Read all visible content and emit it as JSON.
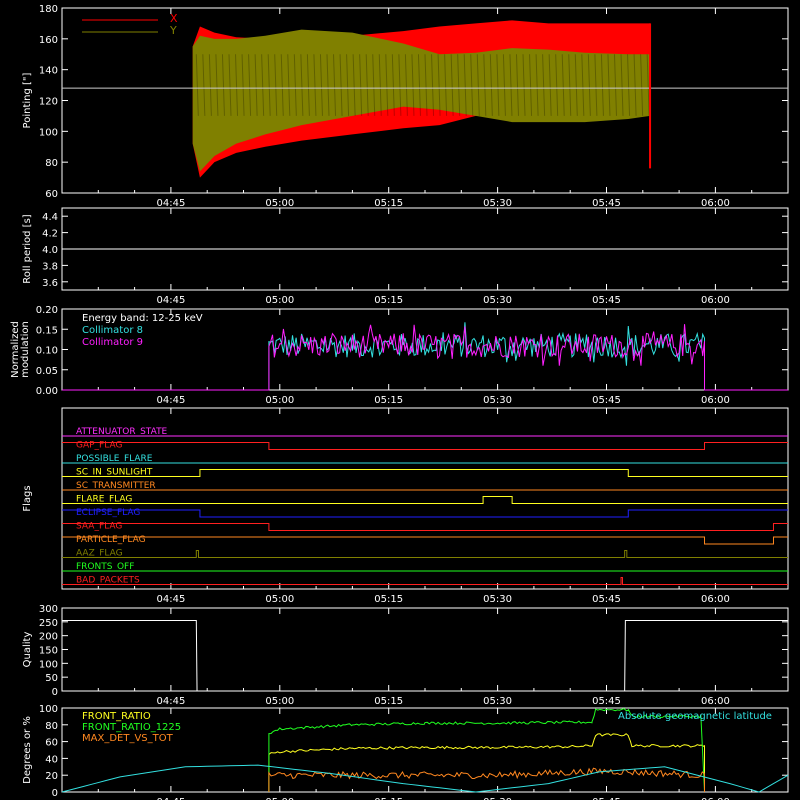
{
  "colors": {
    "background": "#000000",
    "axes": "#ffffff",
    "x_pointing": "#ff0000",
    "y_pointing": "#808000",
    "collimator8": "#33e0e0",
    "collimator9": "#ff20ff",
    "front_ratio": "#ffff20",
    "front_ratio_1225": "#20ff20",
    "max_det": "#ff8820",
    "geomag": "#33e0e0",
    "quality": "#ffffff",
    "roll": "#ffffff"
  },
  "time_axis": {
    "start": "04:30",
    "end": "06:10",
    "ticks": [
      "04:45",
      "05:00",
      "05:15",
      "05:30",
      "05:45",
      "06:00"
    ],
    "tick_minutes": [
      15,
      30,
      45,
      60,
      75,
      90
    ]
  },
  "chart_data": [
    {
      "id": "pointing",
      "type": "area",
      "ylabel": "Pointing [\"]",
      "ylim": [
        60,
        180
      ],
      "yticks": [
        "60",
        "80",
        "100",
        "120",
        "140",
        "160",
        "180"
      ],
      "ytick_values": [
        60,
        80,
        100,
        120,
        140,
        160,
        180
      ],
      "reference_line": 128,
      "legend": [
        "X",
        "Y"
      ],
      "series": [
        {
          "name": "X",
          "x_minutes": [
            18,
            19,
            21,
            24,
            28,
            33,
            40,
            47,
            52,
            57,
            62,
            67,
            72,
            78,
            81
          ],
          "upper": [
            155,
            168,
            164,
            161,
            160,
            160,
            162,
            165,
            168,
            170,
            172,
            170,
            170,
            170,
            170
          ],
          "lower": [
            92,
            70,
            80,
            86,
            90,
            94,
            98,
            102,
            104,
            110,
            110,
            112,
            114,
            114,
            114
          ]
        },
        {
          "name": "Y",
          "x_minutes": [
            18,
            19,
            21,
            24,
            28,
            33,
            40,
            47,
            52,
            57,
            62,
            67,
            72,
            78,
            81
          ],
          "upper": [
            155,
            162,
            160,
            160,
            162,
            166,
            164,
            157,
            150,
            151,
            154,
            153,
            151,
            150,
            150
          ],
          "lower": [
            92,
            74,
            84,
            92,
            98,
            104,
            110,
            116,
            114,
            110,
            106,
            106,
            106,
            108,
            110
          ]
        }
      ]
    },
    {
      "id": "roll",
      "type": "line",
      "ylabel": "Roll period [s]",
      "ylim": [
        3.5,
        4.5
      ],
      "yticks": [
        "3.6",
        "3.8",
        "4.0",
        "4.2",
        "4.4"
      ],
      "ytick_values": [
        3.6,
        3.8,
        4.0,
        4.2,
        4.4
      ],
      "series": [
        {
          "x_minutes": [
            0,
            100
          ],
          "values": [
            4.0,
            4.0
          ]
        }
      ]
    },
    {
      "id": "modulation",
      "type": "line",
      "ylabel": "Normalized modulation",
      "ylim": [
        0,
        0.2
      ],
      "yticks": [
        "0.00",
        "0.05",
        "0.10",
        "0.15",
        "0.20"
      ],
      "ytick_values": [
        0,
        0.05,
        0.1,
        0.15,
        0.2
      ],
      "annotation": "Energy band: 12-25 keV",
      "legend": [
        "Collimator 8",
        "Collimator 9"
      ],
      "active_range_minutes": [
        28.5,
        88.5
      ],
      "series": [
        {
          "name": "Collimator 8",
          "base_value": 0.11,
          "spread": 0.03
        },
        {
          "name": "Collimator 9",
          "base_value": 0.11,
          "spread": 0.03
        }
      ]
    },
    {
      "id": "flags",
      "type": "line",
      "ylabel": "Flags",
      "series": [
        {
          "name": "ATTENUATOR_STATE",
          "color": "#ff30ff",
          "transitions": [
            [
              0,
              0
            ]
          ]
        },
        {
          "name": "SAA_FLAG_GAP",
          "label": "GAP_FLAG",
          "color": "#ff2020",
          "transitions": [
            [
              0,
              1
            ],
            [
              28.5,
              0
            ],
            [
              88.5,
              1
            ]
          ]
        },
        {
          "name": "POSSIBLE_FLARE",
          "color": "#33e0e0",
          "transitions": [
            [
              0,
              0
            ]
          ]
        },
        {
          "name": "SC_IN_SUNLIGHT",
          "color": "#ffff20",
          "transitions": [
            [
              0,
              0
            ],
            [
              19,
              1
            ],
            [
              78,
              0
            ]
          ]
        },
        {
          "name": "SC_TRANSMITTER",
          "color": "#ff8820",
          "transitions": [
            [
              0,
              0
            ]
          ]
        },
        {
          "name": "FLARE_FLAG",
          "color": "#ffff20",
          "transitions": [
            [
              0,
              0
            ],
            [
              58,
              1
            ],
            [
              62,
              0
            ]
          ]
        },
        {
          "name": "ECLIPSE_FLAG",
          "color": "#2020ff",
          "transitions": [
            [
              0,
              1
            ],
            [
              19,
              0
            ],
            [
              78,
              1
            ]
          ]
        },
        {
          "name": "SAA_FLAG",
          "color": "#ff2020",
          "transitions": [
            [
              0,
              1
            ],
            [
              28.5,
              0
            ],
            [
              98,
              1
            ]
          ]
        },
        {
          "name": "PARTICLE_FLAG",
          "color": "#ff8820",
          "transitions": [
            [
              0,
              1
            ],
            [
              88.5,
              0
            ],
            [
              98,
              1
            ]
          ]
        },
        {
          "name": "AAZ_FLAG",
          "color": "#808000",
          "transitions": [
            [
              0,
              0
            ],
            [
              18.5,
              1
            ],
            [
              18.8,
              0
            ],
            [
              77.5,
              1
            ],
            [
              77.8,
              0
            ]
          ]
        },
        {
          "name": "FRONTS_OFF",
          "color": "#20ff20",
          "transitions": [
            [
              0,
              0
            ]
          ]
        },
        {
          "name": "BAD_PACKETS",
          "color": "#ff2020",
          "transitions": [
            [
              0,
              0
            ],
            [
              77,
              1
            ],
            [
              77.2,
              0
            ]
          ]
        }
      ]
    },
    {
      "id": "quality",
      "type": "line",
      "ylabel": "Quality",
      "ylim": [
        0,
        300
      ],
      "yticks": [
        "0",
        "50",
        "100",
        "150",
        "200",
        "250",
        "300"
      ],
      "ytick_values": [
        0,
        50,
        100,
        150,
        200,
        250,
        300
      ],
      "series": [
        {
          "x_minutes": [
            0,
            18.5,
            18.6,
            77.5,
            77.6,
            100
          ],
          "values": [
            255,
            255,
            0,
            0,
            255,
            255
          ]
        }
      ]
    },
    {
      "id": "front_ratio",
      "type": "line",
      "ylabel": "Degrees or %",
      "ylim": [
        0,
        100
      ],
      "yticks": [
        "0",
        "20",
        "40",
        "60",
        "80",
        "100"
      ],
      "ytick_values": [
        0,
        20,
        40,
        60,
        80,
        100
      ],
      "legend": [
        "FRONT_RATIO",
        "FRONT_RATIO_1225",
        "MAX_DET_VS_TOT"
      ],
      "annotation": "Absolute geomagnetic latitude",
      "series": [
        {
          "name": "FRONT_RATIO",
          "x_minutes": [
            28.5,
            30,
            40,
            50,
            60,
            70,
            73,
            73.5,
            78,
            78.5,
            88.5
          ],
          "values": [
            45,
            48,
            52,
            53,
            53,
            54,
            55,
            68,
            68,
            55,
            55
          ]
        },
        {
          "name": "FRONT_RATIO_1225",
          "x_minutes": [
            28.5,
            30,
            40,
            50,
            60,
            70,
            73,
            73.5,
            78,
            78.5,
            88,
            88.5
          ],
          "values": [
            70,
            75,
            80,
            82,
            82,
            83,
            83,
            98,
            98,
            90,
            90,
            0
          ]
        },
        {
          "name": "MAX_DET_VS_TOT",
          "x_minutes": [
            28.5,
            40,
            60,
            75,
            88.5
          ],
          "values": [
            20,
            20,
            20,
            25,
            20
          ]
        },
        {
          "name": "Absolute geomagnetic latitude",
          "x_minutes": [
            0,
            8,
            17,
            27,
            37,
            47,
            57,
            67,
            74,
            83,
            92,
            96,
            100
          ],
          "values": [
            0,
            18,
            30,
            32,
            22,
            10,
            0,
            10,
            24,
            30,
            10,
            0,
            20
          ]
        }
      ]
    }
  ]
}
